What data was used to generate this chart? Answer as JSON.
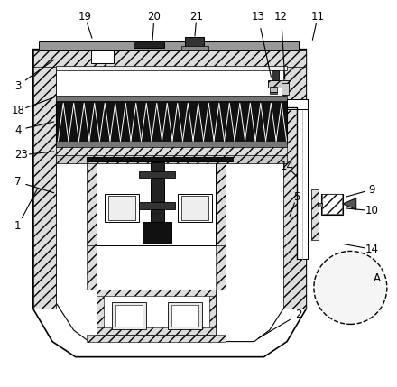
{
  "bg_color": "#ffffff",
  "line_color": "#000000",
  "figsize": [
    4.4,
    4.29
  ],
  "dpi": 100
}
